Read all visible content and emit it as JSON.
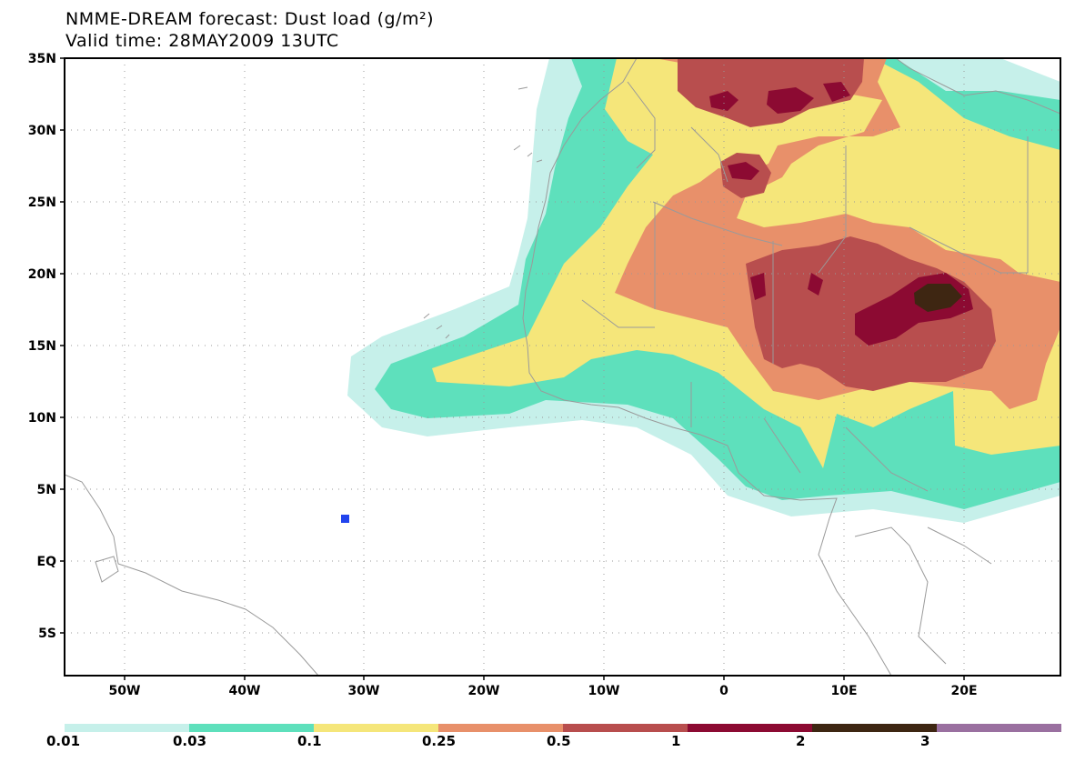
{
  "title": {
    "line1": "NMME-DREAM forecast: Dust load (g/m²)",
    "line2": "Valid time: 28MAY2009 13UTC"
  },
  "map": {
    "lat_labels": [
      "35N",
      "30N",
      "25N",
      "20N",
      "15N",
      "10N",
      "5N",
      "EQ",
      "5S"
    ],
    "lon_labels": [
      "50W",
      "40W",
      "30W",
      "20W",
      "10W",
      "0",
      "10E",
      "20E"
    ],
    "lon_range": [
      -55,
      28
    ],
    "lat_range": [
      -8,
      35
    ],
    "grid": "dotted",
    "marker": {
      "name": "station",
      "lon": -31.5,
      "lat": 3.0,
      "color": "#2244ee"
    }
  },
  "colorbar": {
    "levels": [
      "0.01",
      "0.03",
      "0.1",
      "0.25",
      "0.5",
      "1",
      "2",
      "3"
    ],
    "colors": [
      "#c6f0ea",
      "#5ee0bc",
      "#f5e67a",
      "#e8906a",
      "#b84e4e",
      "#8c0a32",
      "#3e2612",
      "#9a70a0"
    ]
  }
}
